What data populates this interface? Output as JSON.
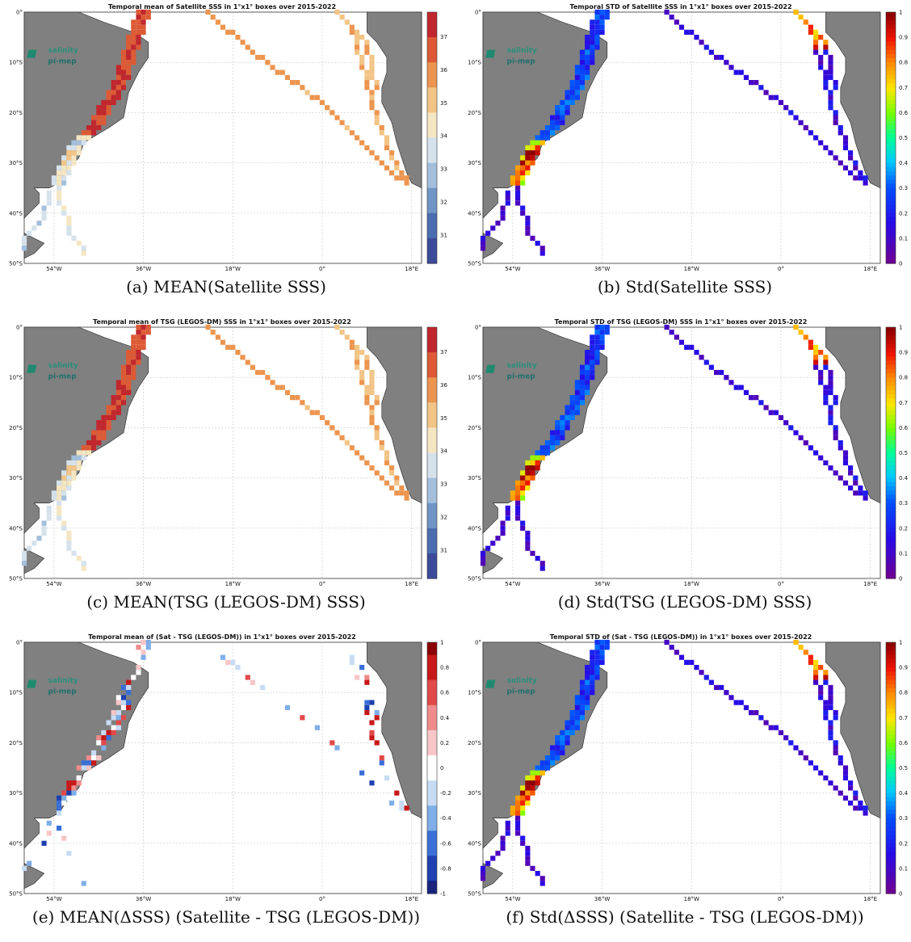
{
  "logo": {
    "line1": "salinity",
    "line2": "pi-mep"
  },
  "axes": {
    "lat_labels": [
      "0°",
      "10°S",
      "20°S",
      "30°S",
      "40°S",
      "50°S"
    ],
    "lon_labels": [
      "54°W",
      "36°W",
      "18°W",
      "0°",
      "18°E"
    ]
  },
  "colorbars": {
    "sss": {
      "ticks": [
        "37",
        "36",
        "35",
        "34",
        "33",
        "32",
        "31"
      ],
      "colormap": "blue-white-red"
    },
    "std": {
      "ticks": [
        "1",
        "0.9",
        "0.8",
        "0.7",
        "0.6",
        "0.5",
        "0.4",
        "0.3",
        "0.2",
        "0.1",
        "0"
      ],
      "colormap": "jet"
    },
    "diff": {
      "ticks": [
        "1",
        "0.8",
        "0.6",
        "0.4",
        "0.2",
        "0",
        "-0.2",
        "-0.4",
        "-0.6",
        "-0.8",
        "-1"
      ],
      "colormap": "blue-white-red"
    }
  },
  "panels": [
    {
      "id": "a",
      "title": "Temporal mean of Satellite SSS in 1°x1° boxes over 2015-2022",
      "caption": "(a) MEAN(Satellite SSS)",
      "colorbar": "sss"
    },
    {
      "id": "b",
      "title": "Temporal STD of Satellite SSS in 1°x1° boxes over 2015-2022",
      "caption": "(b) Std(Satellite SSS)",
      "colorbar": "std"
    },
    {
      "id": "c",
      "title": "Temporal mean of TSG (LEGOS-DM) SSS in 1°x1° boxes over 2015-2022",
      "caption": "(c) MEAN(TSG (LEGOS-DM) SSS)",
      "colorbar": "sss"
    },
    {
      "id": "d",
      "title": "Temporal STD of TSG (LEGOS-DM) SSS in 1°x1° boxes over 2015-2022",
      "caption": "(d) Std(TSG (LEGOS-DM) SSS)",
      "colorbar": "std"
    },
    {
      "id": "e",
      "title": "Temporal mean of (Sat - TSG (LEGOS-DM)) in 1°x1° boxes over 2015-2022",
      "caption": "(e) MEAN(ΔSSS) (Satellite - TSG (LEGOS-DM))",
      "colorbar": "diff"
    },
    {
      "id": "f",
      "title": "Temporal STD of (Sat - TSG (LEGOS-DM)) in 1°x1° boxes over 2015-2022",
      "caption": "(f) Std(ΔSSS) (Satellite - TSG (LEGOS-DM))",
      "colorbar": "std"
    }
  ]
}
